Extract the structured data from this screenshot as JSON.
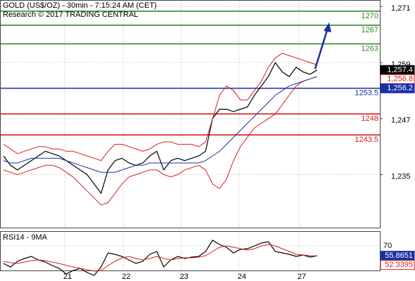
{
  "chart_data": {
    "type": "line",
    "title": "GOLD (US$/OZ) - 30min - 7:15:24 AM (CET)",
    "subtitle": "Research © 2017 TRADING CENTRAL",
    "x": [
      0,
      1,
      2,
      3,
      4,
      5,
      6,
      7,
      8,
      9,
      10,
      11,
      12,
      13,
      14,
      15,
      16,
      17,
      18,
      19,
      20,
      21,
      22,
      23,
      24,
      25,
      26,
      27,
      28,
      29,
      30,
      31,
      32,
      33,
      34,
      35,
      36,
      37,
      38,
      39,
      40,
      41,
      42,
      43,
      44,
      45
    ],
    "xlim": [
      -0.5,
      54
    ],
    "xticks": [
      {
        "value": 8.8,
        "label": "21"
      },
      {
        "value": 17.2,
        "label": "22"
      },
      {
        "value": 25.5,
        "label": "23"
      },
      {
        "value": 33.8,
        "label": "24"
      },
      {
        "value": 42.4,
        "label": "27"
      }
    ],
    "ylim": [
      1223.5,
      1272.4
    ],
    "yticks": [
      {
        "value": 1271,
        "label": "1,271"
      },
      {
        "value": 1259,
        "label": "1,259"
      },
      {
        "value": 1247,
        "label": "1,247"
      },
      {
        "value": 1235,
        "label": "1,235"
      }
    ],
    "grid": true,
    "series": [
      {
        "color": "#000000",
        "values": [
          1239,
          1237,
          1236,
          1237,
          1238,
          1239,
          1240,
          1239.5,
          1239,
          1238,
          1237,
          1236,
          1235,
          1233,
          1231,
          1236,
          1238,
          1238.5,
          1237.5,
          1237,
          1237.5,
          1239,
          1240,
          1236,
          1238,
          1238.5,
          1238,
          1238.5,
          1239,
          1240,
          1247,
          1249,
          1249,
          1248.5,
          1249,
          1249.5,
          1252,
          1254,
          1256,
          1259,
          1257,
          1256,
          1258,
          1257,
          1256.5,
          1257.4
        ]
      },
      {
        "color": "#d62020",
        "values": [
          1241.5,
          1240.5,
          1239.5,
          1240,
          1240.5,
          1241,
          1241,
          1240.5,
          1240.5,
          1240,
          1240,
          1239.5,
          1239,
          1238.5,
          1238,
          1240,
          1241.5,
          1241.5,
          1241,
          1240.5,
          1240,
          1240.5,
          1241.5,
          1242,
          1242,
          1241.5,
          1241.5,
          1241.5,
          1241,
          1242,
          1247,
          1252,
          1254,
          1253,
          1251,
          1251,
          1253,
          1255,
          1258,
          1260,
          1261,
          1260.5,
          1260,
          1259.5,
          1259,
          1258.5
        ]
      },
      {
        "color": "#d62020",
        "values": [
          1236,
          1235.5,
          1235,
          1235.5,
          1236,
          1236.5,
          1237,
          1237,
          1236.5,
          1235.5,
          1234.5,
          1233,
          1231.5,
          1230,
          1228.5,
          1229,
          1231,
          1233,
          1234.5,
          1235,
          1235.5,
          1236,
          1236,
          1235,
          1234.5,
          1235,
          1236,
          1236.5,
          1237,
          1236,
          1233,
          1232,
          1234,
          1238,
          1241,
          1243,
          1245,
          1246,
          1247,
          1248,
          1250,
          1252,
          1254,
          1255,
          1255.5,
          1256
        ]
      },
      {
        "color": "#1c2fa0",
        "values": [
          1238,
          1237.5,
          1237.5,
          1238,
          1238.5,
          1238.5,
          1238.5,
          1238.5,
          1238.5,
          1238,
          1237.5,
          1237,
          1236.5,
          1236,
          1235.5,
          1235.5,
          1235.5,
          1236,
          1236.5,
          1237,
          1237,
          1237.5,
          1237.5,
          1237.5,
          1237.5,
          1237.5,
          1237.5,
          1237.5,
          1237.5,
          1238,
          1239,
          1240,
          1241.5,
          1243,
          1244.5,
          1246,
          1247.5,
          1249,
          1250.5,
          1252,
          1253,
          1254,
          1254.5,
          1255,
          1255.5,
          1256
        ]
      }
    ],
    "levels": [
      {
        "value": 1270,
        "color": "#2e8b2e"
      },
      {
        "value": 1267,
        "color": "#2e8b2e"
      },
      {
        "value": 1263,
        "color": "#2e8b2e"
      },
      {
        "value": 1253.5,
        "color": "#1c2fa0"
      },
      {
        "value": 1248,
        "color": "#d62020"
      },
      {
        "value": 1243.5,
        "color": "#d62020"
      }
    ],
    "price_tags": [
      {
        "value": 1257.4,
        "label": "1,257.4",
        "color": "#000000",
        "filled": true
      },
      {
        "value": 1256.8,
        "label": "1,256.8",
        "color": "#d62020",
        "filled": false
      },
      {
        "value": 1256.2,
        "label": "1,256.2",
        "color": "#1c2fa0",
        "filled": true
      }
    ],
    "rsi": {
      "title": "RSI14 - 9MA",
      "ylim": [
        32,
        90
      ],
      "yticks": [
        70
      ],
      "series": [
        {
          "color": "#000000",
          "values": [
            45,
            40,
            48,
            52,
            55,
            50,
            47,
            42,
            38,
            30,
            35,
            38,
            32,
            28,
            40,
            60,
            58,
            55,
            50,
            45,
            48,
            58,
            62,
            40,
            50,
            55,
            52,
            54,
            55,
            62,
            78,
            72,
            68,
            60,
            65,
            66,
            70,
            74,
            76,
            62,
            60,
            58,
            55,
            57,
            54,
            56
          ]
        },
        {
          "color": "#d62020",
          "values": [
            48,
            46,
            45,
            47,
            49,
            50,
            49,
            47,
            45,
            42,
            40,
            38,
            36,
            34,
            35,
            42,
            48,
            53,
            55,
            52,
            50,
            52,
            55,
            52,
            50,
            52,
            53,
            53,
            54,
            56,
            62,
            68,
            70,
            68,
            66,
            64,
            66,
            70,
            72,
            70,
            66,
            62,
            58,
            57,
            56,
            55.5
          ]
        }
      ],
      "tags": [
        {
          "value": 55.8651,
          "label": "55.8651",
          "color": "#1c2fa0",
          "filled": true
        },
        {
          "value": 52.3395,
          "label": "52.3395",
          "color": "#d62020",
          "filled": false
        }
      ]
    }
  }
}
